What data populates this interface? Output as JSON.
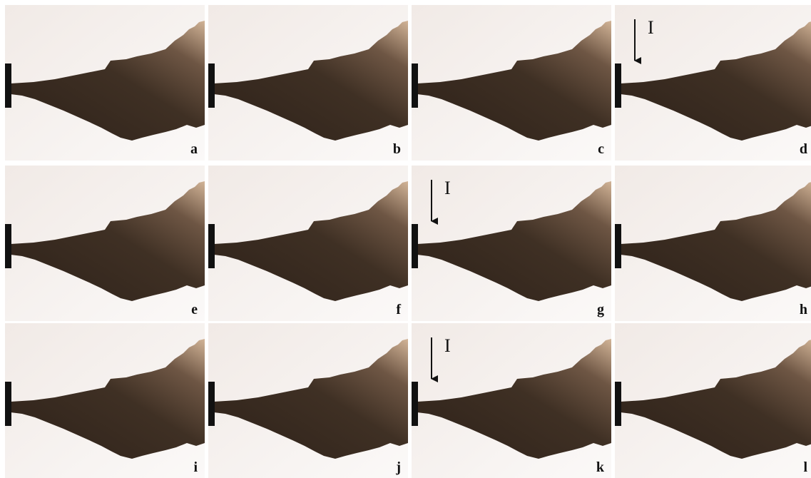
{
  "panels": [
    {
      "label": "a"
    },
    {
      "label": "b"
    },
    {
      "label": "c"
    },
    {
      "label": "d",
      "annotation": "I"
    },
    {
      "label": "e"
    },
    {
      "label": "f"
    },
    {
      "label": "g",
      "annotation": "I"
    },
    {
      "label": "h"
    },
    {
      "label": "i"
    },
    {
      "label": "j"
    },
    {
      "label": "k",
      "annotation": "I"
    },
    {
      "label": "l"
    }
  ]
}
